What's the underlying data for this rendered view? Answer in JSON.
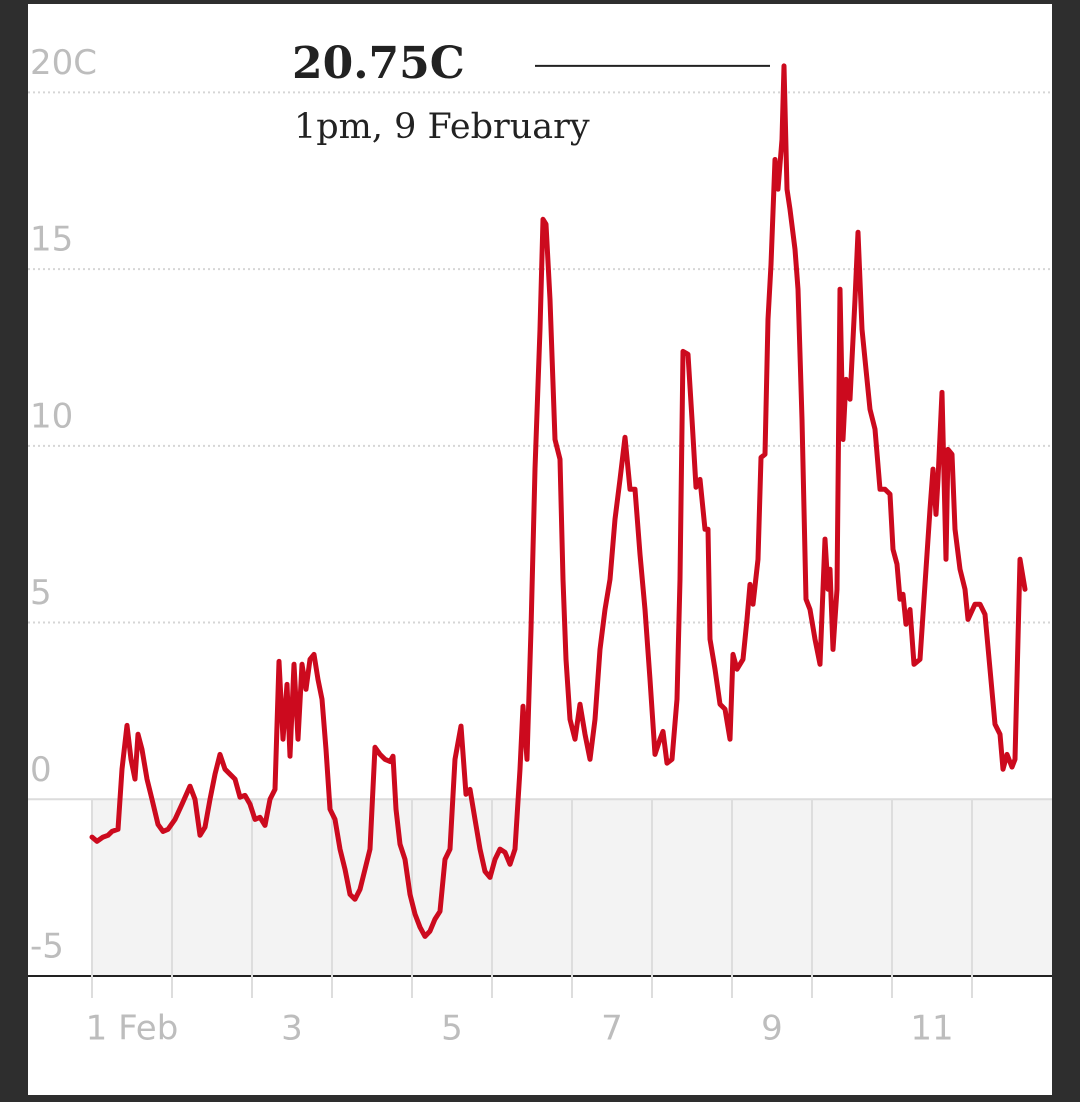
{
  "chart_data": {
    "type": "line",
    "color": "#cc0a1e",
    "grid": true,
    "negative_shading": true,
    "annotation": {
      "label": "20.75C",
      "value": 20.75,
      "text": "1pm, 9 February"
    },
    "xlim": [
      1,
      13
    ],
    "ylim": [
      -5,
      22.5
    ],
    "xticks": [
      {
        "value": 1,
        "label": "1 Feb"
      },
      3,
      5,
      7,
      9,
      11
    ],
    "x_minor_ticks": [
      2,
      4,
      6,
      8,
      10,
      12
    ],
    "yticks": [
      -5,
      0,
      5,
      10,
      15,
      {
        "value": 20,
        "label": "20C"
      }
    ],
    "x": [
      1.0,
      1.0625,
      1.1375,
      1.2,
      1.25,
      1.325,
      1.375,
      1.4375,
      1.4875,
      1.5375,
      1.575,
      1.625,
      1.6875,
      1.75,
      1.825,
      1.8875,
      1.95,
      2.0375,
      2.125,
      2.225,
      2.2875,
      2.35,
      2.4125,
      2.475,
      2.5375,
      2.6,
      2.6625,
      2.725,
      2.7875,
      2.85,
      2.9125,
      2.975,
      3.0375,
      3.1,
      3.1625,
      3.225,
      3.2875,
      3.3375,
      3.3875,
      3.4375,
      3.475,
      3.525,
      3.575,
      3.625,
      3.675,
      3.725,
      3.775,
      3.825,
      3.875,
      3.925,
      3.975,
      4.0375,
      4.1,
      4.1625,
      4.225,
      4.2875,
      4.35,
      4.4125,
      4.475,
      4.5375,
      4.6,
      4.6625,
      4.725,
      4.7625,
      4.8,
      4.85,
      4.9125,
      4.975,
      5.0375,
      5.1,
      5.1625,
      5.225,
      5.2875,
      5.35,
      5.4125,
      5.475,
      5.5375,
      5.6125,
      5.675,
      5.725,
      5.7875,
      5.85,
      5.9125,
      5.975,
      6.0375,
      6.1,
      6.1625,
      6.225,
      6.2875,
      6.35,
      6.3875,
      6.4375,
      6.4875,
      6.5375,
      6.6,
      6.6375,
      6.675,
      6.725,
      6.7875,
      6.85,
      6.8875,
      6.925,
      6.975,
      7.0375,
      7.1,
      7.1625,
      7.225,
      7.2875,
      7.35,
      7.4125,
      7.475,
      7.5375,
      7.6,
      7.6625,
      7.725,
      7.7875,
      7.85,
      7.9125,
      7.975,
      8.0375,
      8.1,
      8.1375,
      8.1875,
      8.25,
      8.3125,
      8.35,
      8.3875,
      8.45,
      8.5,
      8.55,
      8.6,
      8.6625,
      8.7,
      8.725,
      8.7875,
      8.85,
      8.9125,
      8.975,
      9.0125,
      9.0625,
      9.1375,
      9.1875,
      9.225,
      9.2625,
      9.325,
      9.3625,
      9.4125,
      9.45,
      9.4875,
      9.5375,
      9.575,
      9.625,
      9.65,
      9.6875,
      9.725,
      9.7875,
      9.825,
      9.875,
      9.925,
      9.975,
      10.0375,
      10.1,
      10.1625,
      10.2,
      10.225,
      10.2625,
      10.3125,
      10.35,
      10.3875,
      10.425,
      10.475,
      10.5375,
      10.575,
      10.625,
      10.675,
      10.725,
      10.7875,
      10.85,
      10.9125,
      10.975,
      11.0125,
      11.0625,
      11.1,
      11.1375,
      11.175,
      11.225,
      11.275,
      11.35,
      11.425,
      11.475,
      11.5125,
      11.55,
      11.575,
      11.625,
      11.675,
      11.7,
      11.75,
      11.7875,
      11.85,
      11.9125,
      11.95,
      12.0375,
      12.1,
      12.1625,
      12.225,
      12.2875,
      12.35,
      12.3875,
      12.4375,
      12.5,
      12.5375,
      12.6,
      12.6625
    ],
    "values": [
      -1.07,
      -1.19,
      -1.07,
      -1.02,
      -0.91,
      -0.85,
      0.85,
      2.09,
      1.13,
      0.57,
      1.84,
      1.41,
      0.57,
      0,
      -0.71,
      -0.91,
      -0.85,
      -0.57,
      -0.14,
      0.37,
      0,
      -1.02,
      -0.79,
      0,
      0.71,
      1.27,
      0.85,
      0.71,
      0.57,
      0.06,
      0.11,
      -0.14,
      -0.57,
      -0.51,
      -0.74,
      0,
      0.28,
      3.9,
      1.7,
      3.25,
      1.22,
      3.82,
      1.7,
      3.82,
      3.11,
      3.96,
      4.1,
      3.39,
      2.83,
      1.41,
      -0.28,
      -0.57,
      -1.41,
      -1.98,
      -2.69,
      -2.83,
      -2.55,
      -1.98,
      -1.41,
      1.47,
      1.27,
      1.13,
      1.07,
      1.22,
      -0.28,
      -1.27,
      -1.7,
      -2.69,
      -3.25,
      -3.62,
      -3.88,
      -3.73,
      -3.39,
      -3.17,
      -1.7,
      -1.41,
      1.13,
      2.07,
      0.14,
      0.28,
      -0.57,
      -1.41,
      -2.04,
      -2.21,
      -1.7,
      -1.41,
      -1.5,
      -1.84,
      -1.41,
      0.85,
      2.63,
      1.13,
      4.81,
      9.34,
      13.3,
      16.41,
      16.27,
      14.14,
      10.18,
      9.62,
      6.22,
      3.96,
      2.26,
      1.7,
      2.69,
      1.84,
      1.13,
      2.26,
      4.24,
      5.37,
      6.22,
      7.92,
      9.05,
      10.24,
      8.77,
      8.77,
      6.93,
      5.37,
      3.39,
      1.27,
      1.7,
      1.92,
      1.02,
      1.13,
      2.83,
      6.22,
      12.67,
      12.59,
      10.75,
      8.83,
      9.05,
      7.64,
      7.64,
      4.53,
      3.68,
      2.69,
      2.55,
      1.7,
      4.1,
      3.68,
      3.96,
      5.09,
      6.08,
      5.52,
      6.79,
      9.67,
      9.76,
      13.58,
      15.13,
      18.1,
      17.26,
      18.67,
      20.75,
      17.26,
      16.69,
      15.56,
      14.43,
      10.75,
      5.66,
      5.37,
      4.53,
      3.82,
      7.36,
      5.94,
      6.51,
      4.24,
      5.94,
      14.43,
      10.18,
      11.88,
      11.32,
      14.14,
      16.04,
      13.3,
      12.16,
      11.03,
      10.47,
      8.77,
      8.77,
      8.63,
      7.07,
      6.65,
      5.66,
      5.8,
      4.95,
      5.37,
      3.82,
      3.96,
      6.51,
      8.2,
      9.34,
      8.06,
      9.05,
      11.51,
      6.79,
      9.9,
      9.76,
      7.64,
      6.51,
      5.94,
      5.09,
      5.52,
      5.52,
      5.23,
      3.68,
      2.12,
      1.84,
      0.85,
      1.27,
      0.91,
      1.13,
      6.79,
      5.94
    ]
  }
}
